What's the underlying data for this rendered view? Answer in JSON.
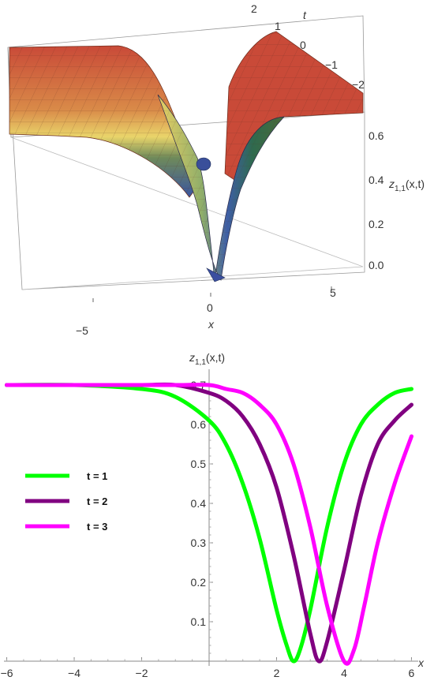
{
  "chart_data": [
    {
      "type": "surface3d",
      "function": "z_{1,1}(x,t)",
      "x_range": [
        -7,
        7
      ],
      "t_range": [
        -2.5,
        2
      ],
      "z_range": [
        0,
        0.7
      ],
      "x_ticks": [
        "−5",
        "0",
        "5"
      ],
      "t_ticks": [
        "2",
        "1",
        "0",
        "−1",
        "−2"
      ],
      "z_ticks": [
        "0.0",
        "0.2",
        "0.4",
        "0.6"
      ],
      "xlabel": "x",
      "tlabel": "t",
      "zlabel_main": "z",
      "zlabel_sub": "1,1",
      "zlabel_args": "(x,t)",
      "plateau": 0.7,
      "colormap": [
        "#3a55a0",
        "#e9d46a",
        "#c94a38"
      ]
    },
    {
      "type": "line",
      "ylabel_main": "z",
      "ylabel_sub": "1,1",
      "ylabel_args": "(x,t)",
      "xlabel": "x",
      "xlim": [
        -6.2,
        6.2
      ],
      "ylim": [
        0,
        0.72
      ],
      "x_ticks": [
        "−6",
        "−4",
        "−2",
        "2",
        "4",
        "6"
      ],
      "y_ticks": [
        "0.1",
        "0.2",
        "0.3",
        "0.4",
        "0.5",
        "0.6",
        "0.7"
      ],
      "legend_position": "left",
      "series": [
        {
          "name": "t = 1",
          "color": "#00ff00",
          "t": 1,
          "x": [
            -6,
            -4,
            -2,
            -1,
            0,
            0.5,
            1,
            1.5,
            2,
            2.3,
            2.5,
            2.7,
            3,
            3.5,
            4,
            4.5,
            5,
            5.5,
            6
          ],
          "y": [
            0.7,
            0.7,
            0.69,
            0.67,
            0.61,
            0.55,
            0.45,
            0.31,
            0.13,
            0.04,
            0.0,
            0.03,
            0.13,
            0.34,
            0.5,
            0.6,
            0.65,
            0.68,
            0.69
          ]
        },
        {
          "name": "t = 2",
          "color": "#800080",
          "t": 2,
          "x": [
            -6,
            -4,
            -2,
            -1,
            0,
            0.5,
            1,
            1.5,
            2,
            2.5,
            3,
            3.25,
            3.5,
            4,
            4.5,
            5,
            5.5,
            6
          ],
          "y": [
            0.7,
            0.7,
            0.7,
            0.7,
            0.68,
            0.66,
            0.62,
            0.55,
            0.44,
            0.27,
            0.07,
            0.0,
            0.05,
            0.23,
            0.42,
            0.55,
            0.61,
            0.65
          ]
        },
        {
          "name": "t = 3",
          "color": "#ff00ff",
          "t": 3,
          "x": [
            -6,
            -4,
            -2,
            -1,
            0,
            0.5,
            1,
            1.5,
            2,
            2.5,
            3,
            3.5,
            4,
            4.3,
            4.6,
            5,
            5.5,
            6
          ],
          "y": [
            0.7,
            0.7,
            0.7,
            0.7,
            0.7,
            0.69,
            0.68,
            0.65,
            0.6,
            0.5,
            0.34,
            0.14,
            0.0,
            0.03,
            0.14,
            0.3,
            0.45,
            0.57
          ]
        }
      ]
    }
  ]
}
